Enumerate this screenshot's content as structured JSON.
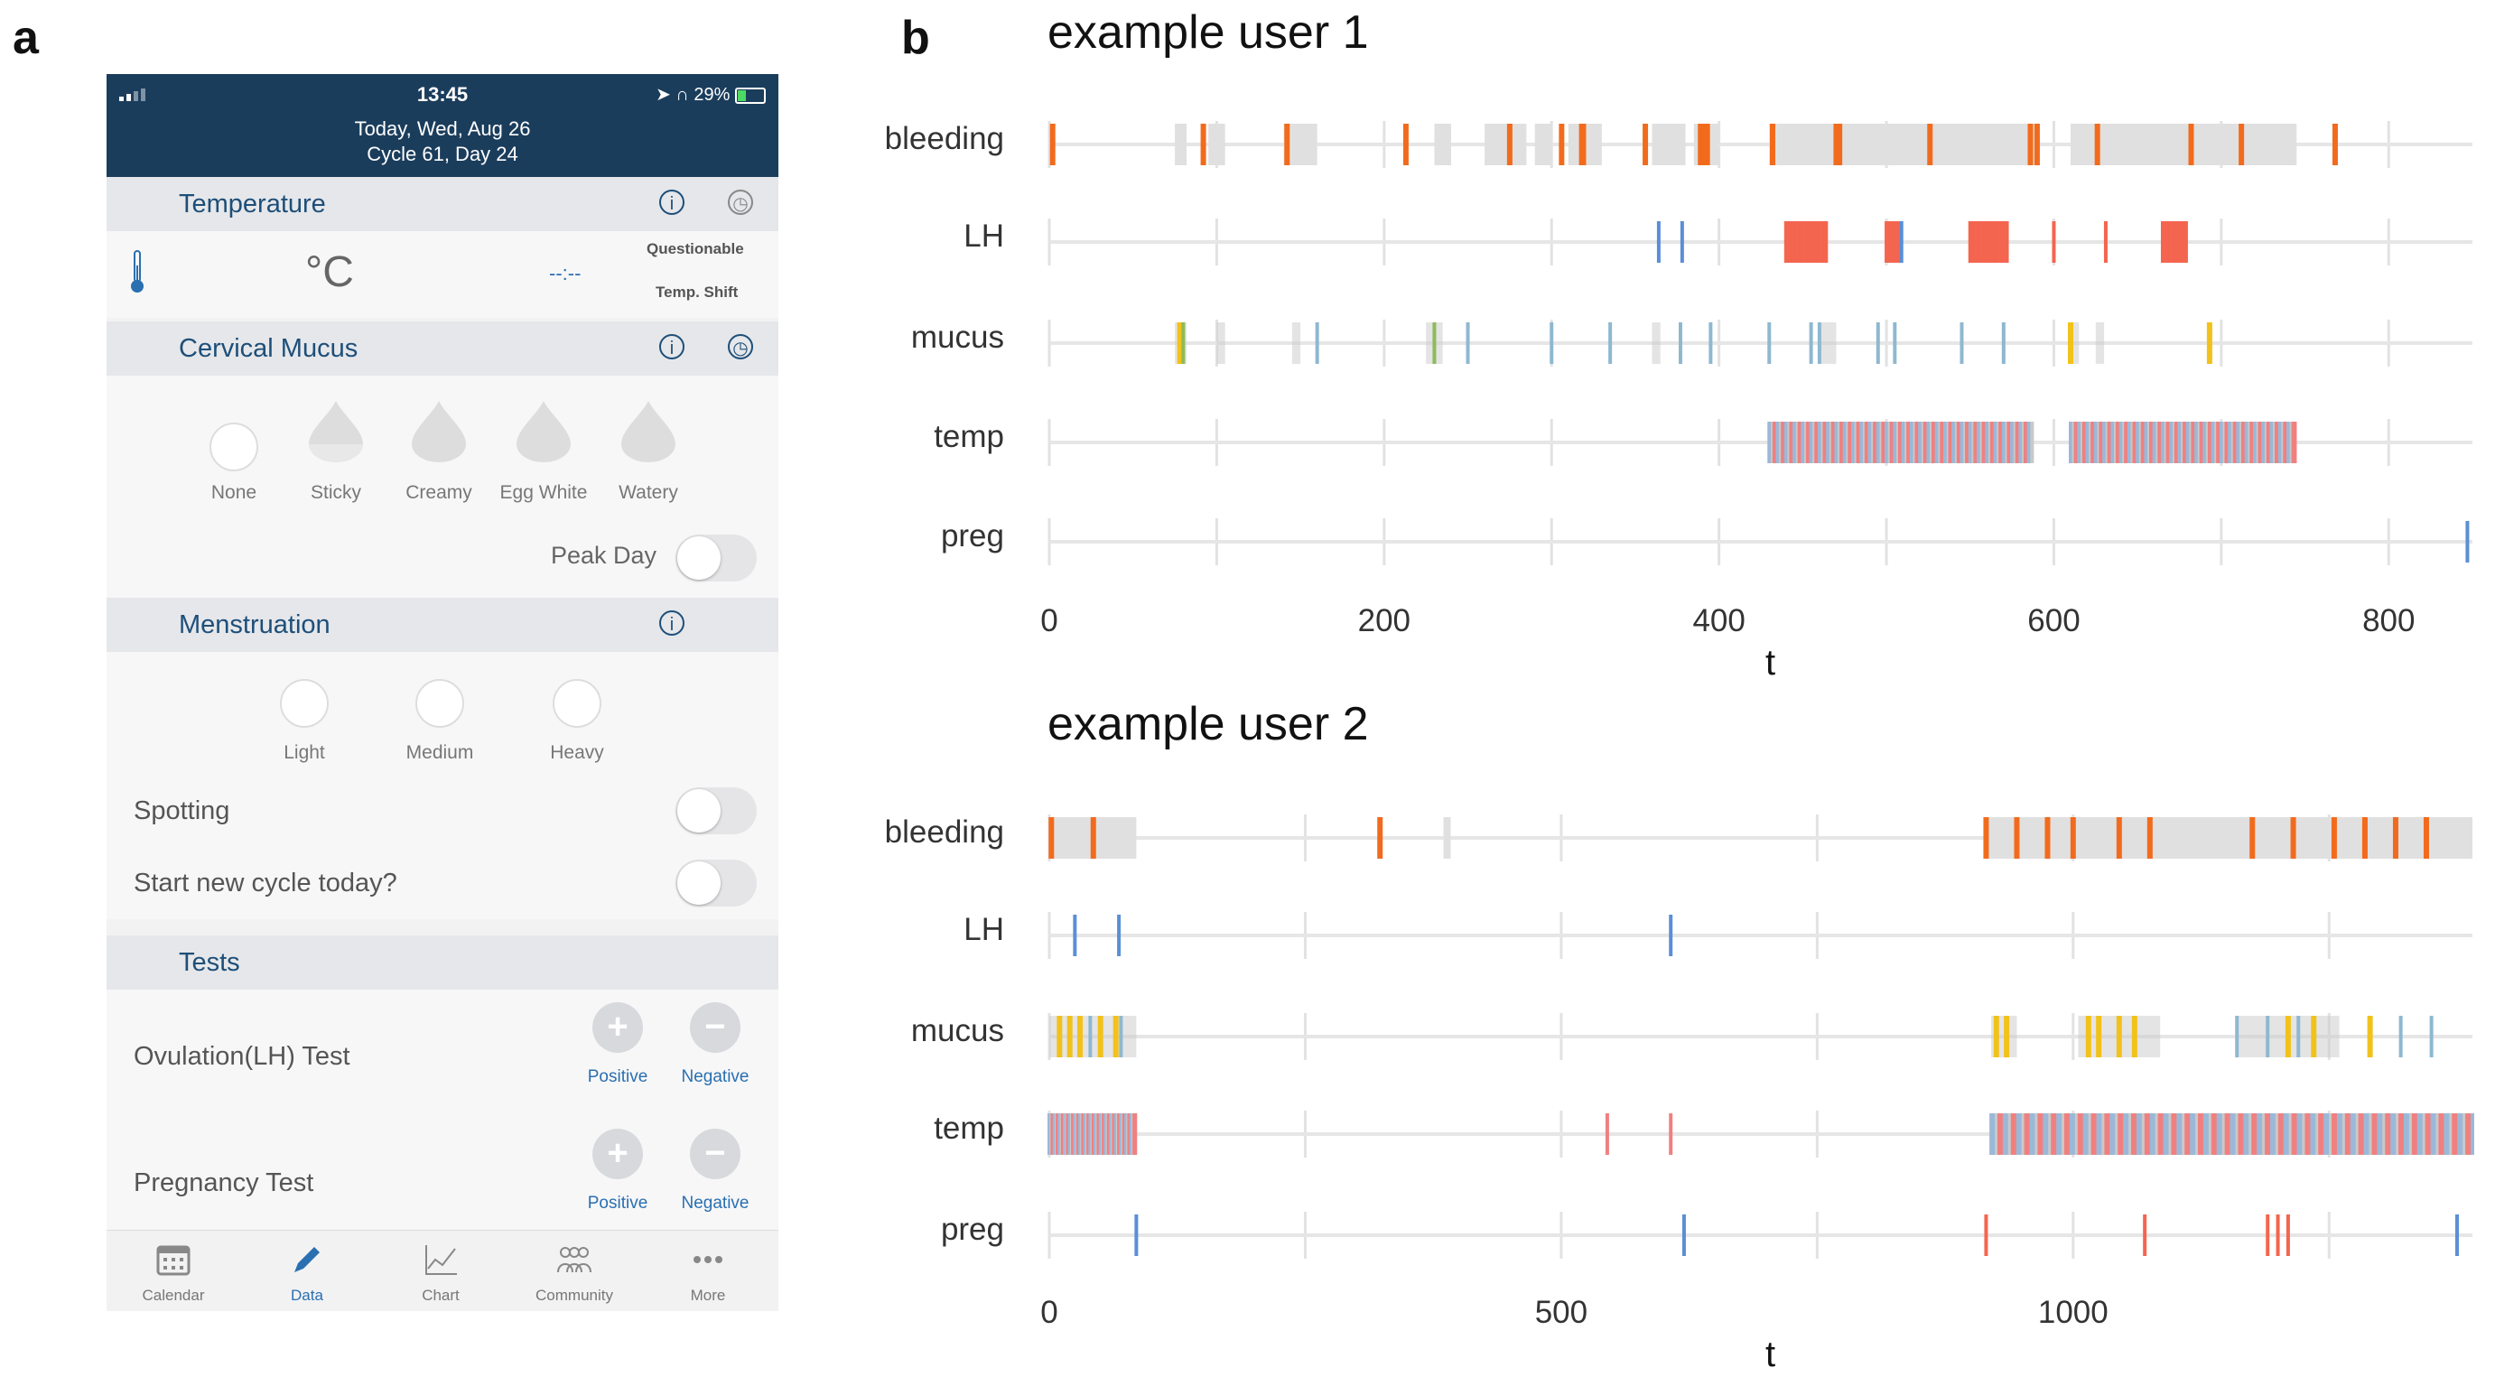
{
  "panels": {
    "a": "a",
    "b": "b"
  },
  "app": {
    "status": {
      "time": "13:45",
      "battery": "29%"
    },
    "header": {
      "date": "Today, Wed, Aug 26",
      "cycle": "Cycle 61, Day 24"
    },
    "temperature": {
      "title": "Temperature",
      "unit": "°C",
      "value": "--:--",
      "questionable": "Questionable",
      "temp_shift": "Temp. Shift"
    },
    "mucus": {
      "title": "Cervical Mucus",
      "options": [
        "None",
        "Sticky",
        "Creamy",
        "Egg White",
        "Watery"
      ],
      "peak_day": "Peak Day"
    },
    "menstruation": {
      "title": "Menstruation",
      "options": [
        "Light",
        "Medium",
        "Heavy"
      ],
      "spotting": "Spotting",
      "new_cycle": "Start new cycle today?"
    },
    "tests": {
      "title": "Tests",
      "ovulation": "Ovulation(LH) Test",
      "pregnancy": "Pregnancy Test",
      "positive": "Positive",
      "negative": "Negative"
    },
    "tabs": [
      "Calendar",
      "Data",
      "Chart",
      "Community",
      "More"
    ]
  },
  "colors": {
    "bleeding": "#f26b1d",
    "bleeding_light": "#e0e0e0",
    "lh_pos": "#f4654f",
    "neg": "#5a8fd6",
    "mucus_yellow": "#f2c21b",
    "mucus_blue": "#8fb8d0",
    "temp_red": "#f08080",
    "temp_blue": "#9bb8d8",
    "grey": "#c9c9c9",
    "header": "#1b3d5c"
  },
  "chart_data": [
    {
      "type": "event-timeline",
      "title": "example user 1",
      "rows": [
        "bleeding",
        "LH",
        "mucus",
        "temp",
        "preg"
      ],
      "xlabel": "t",
      "xticks": [
        0,
        200,
        400,
        600,
        800
      ],
      "xlim": [
        0,
        850
      ],
      "events": {
        "bleeding": {
          "grey_ranges": [
            [
              75,
              82
            ],
            [
              95,
              105
            ],
            [
              140,
              160
            ],
            [
              230,
              240
            ],
            [
              260,
              285
            ],
            [
              290,
              300
            ],
            [
              310,
              330
            ],
            [
              360,
              380
            ],
            [
              385,
              400
            ],
            [
              430,
              590
            ],
            [
              610,
              745
            ]
          ],
          "orange": [
            2,
            92,
            142,
            213,
            275,
            306,
            318,
            319,
            356,
            389,
            391,
            393,
            432,
            470,
            472,
            526,
            586,
            590,
            626,
            682,
            712,
            768
          ]
        },
        "LH": {
          "red": [
            [
              440,
              465
            ],
            [
              500,
              508
            ],
            [
              550,
              573
            ],
            [
              600,
              601
            ],
            [
              631,
              632
            ],
            [
              665,
              680
            ]
          ],
          "blue": [
            364,
            378,
            509
          ]
        },
        "mucus": {
          "grey": [
            [
              75,
              82
            ],
            [
              100,
              105
            ],
            [
              145,
              150
            ],
            [
              225,
              235
            ],
            [
              360,
              365
            ],
            [
              460,
              470
            ],
            [
              610,
              615
            ],
            [
              625,
              630
            ]
          ],
          "yellow": [
            78,
            610,
            693
          ],
          "green": [
            80,
            230
          ],
          "blue": [
            160,
            250,
            300,
            335,
            377,
            395,
            430,
            455,
            460,
            495,
            505,
            545,
            570
          ]
        },
        "temp": {
          "ranges": [
            [
              430,
              588
            ],
            [
              610,
              745
            ]
          ]
        },
        "preg": {
          "blue": [
            847
          ]
        }
      }
    },
    {
      "type": "event-timeline",
      "title": "example user 2",
      "rows": [
        "bleeding",
        "LH",
        "mucus",
        "temp",
        "preg"
      ],
      "xlabel": "t",
      "xticks": [
        0,
        500,
        1000
      ],
      "xlim": [
        0,
        1390
      ],
      "events": {
        "bleeding": {
          "grey_ranges": [
            [
              0,
              85
            ],
            [
              385,
              392
            ],
            [
              915,
              1390
            ]
          ],
          "orange": [
            2,
            43,
            323,
            915,
            945,
            975,
            1000,
            1045,
            1075,
            1175,
            1215,
            1255,
            1285,
            1315,
            1345
          ]
        },
        "LH": {
          "red": [],
          "blue": [
            25,
            68,
            607
          ]
        },
        "mucus": {
          "grey": [
            [
              0,
              85
            ],
            [
              920,
              945
            ],
            [
              1005,
              1085
            ],
            [
              1160,
              1260
            ]
          ],
          "yellow": [
            10,
            20,
            30,
            50,
            65,
            925,
            935,
            1015,
            1025,
            1045,
            1060,
            1210,
            1235,
            1290
          ],
          "blue": [
            40,
            70,
            1160,
            1190,
            1220,
            1320,
            1350
          ]
        },
        "temp": {
          "ranges": [
            [
              0,
              85
            ],
            [
              920,
              1390
            ]
          ],
          "red_marks": [
            545,
            607
          ]
        },
        "preg": {
          "red": [
            915,
            1070,
            1190,
            1200,
            1210
          ],
          "blue": [
            85,
            620,
            1375
          ]
        }
      }
    }
  ]
}
